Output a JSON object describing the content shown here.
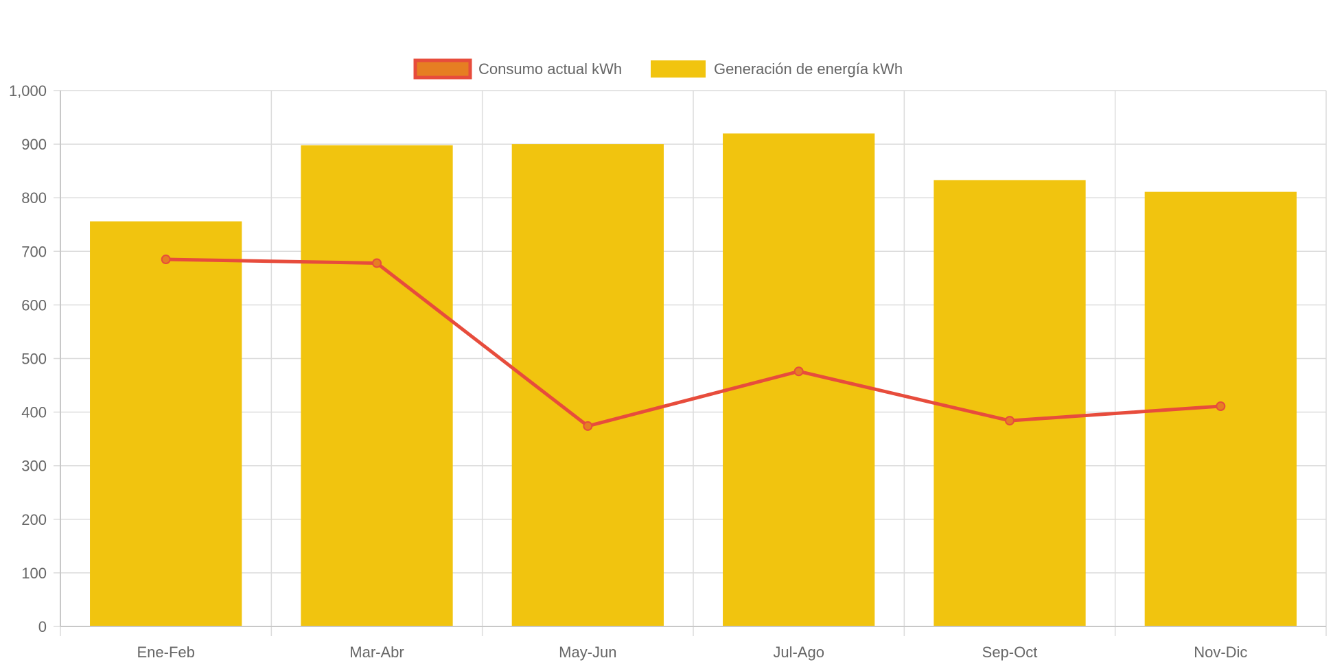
{
  "chart_data": {
    "type": "bar",
    "categories": [
      "Ene-Feb",
      "Mar-Abr",
      "May-Jun",
      "Jul-Ago",
      "Sep-Oct",
      "Nov-Dic"
    ],
    "series": [
      {
        "name": "Consumo actual kWh",
        "type": "line",
        "values": [
          685,
          678,
          374,
          476,
          384,
          411
        ],
        "color": "#e74c3c",
        "point_fill": "#e67e22"
      },
      {
        "name": "Generación de energía kWh",
        "type": "bar",
        "values": [
          756,
          898,
          900,
          920,
          833,
          811
        ],
        "color": "#f1c40f"
      }
    ],
    "y_ticks": [
      "0",
      "100",
      "200",
      "300",
      "400",
      "500",
      "600",
      "700",
      "800",
      "900",
      "1,000"
    ],
    "ylim": [
      0,
      1000
    ],
    "grid": true,
    "legend_position": "top"
  }
}
